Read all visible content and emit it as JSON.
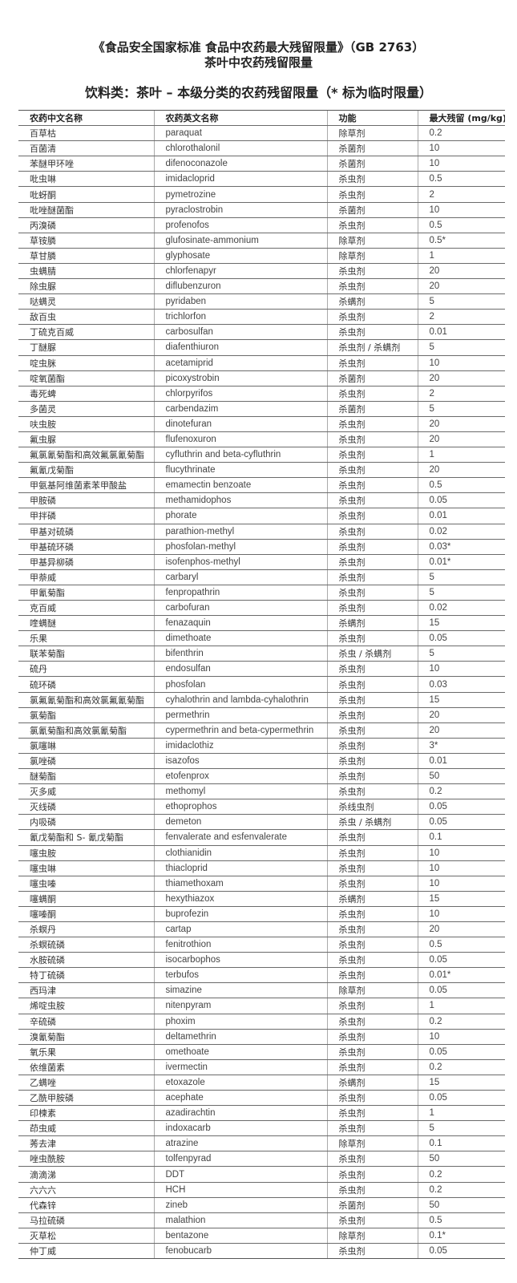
{
  "title_line1": "《食品安全国家标准 食品中农药最大残留限量》（GB 2763）",
  "title_line2": "茶叶中农药残留限量",
  "subtitle": "饮料类：茶叶 – 本级分类的农药残留限量（* 标为临时限量）",
  "table": {
    "headers": [
      "农药中文名称",
      "农药英文名称",
      "功能",
      "最大残留 (mg/kg)"
    ],
    "rows": [
      [
        "百草枯",
        "paraquat",
        "除草剂",
        "0.2"
      ],
      [
        "百菌清",
        "chlorothalonil",
        "杀菌剂",
        "10"
      ],
      [
        "苯醚甲环唑",
        "difenoconazole",
        "杀菌剂",
        "10"
      ],
      [
        "吡虫啉",
        "imidacloprid",
        "杀虫剂",
        "0.5"
      ],
      [
        "吡蚜酮",
        "pymetrozine",
        "杀虫剂",
        "2"
      ],
      [
        "吡唑醚菌酯",
        "pyraclostrobin",
        "杀菌剂",
        "10"
      ],
      [
        "丙溴磷",
        "profenofos",
        "杀虫剂",
        "0.5"
      ],
      [
        "草铵膦",
        "glufosinate-ammonium",
        "除草剂",
        "0.5*"
      ],
      [
        "草甘膦",
        "glyphosate",
        "除草剂",
        "1"
      ],
      [
        "虫螨腈",
        "chlorfenapyr",
        "杀虫剂",
        "20"
      ],
      [
        "除虫脲",
        "diflubenzuron",
        "杀虫剂",
        "20"
      ],
      [
        "哒螨灵",
        "pyridaben",
        "杀螨剂",
        "5"
      ],
      [
        "敌百虫",
        "trichlorfon",
        "杀虫剂",
        "2"
      ],
      [
        "丁硫克百威",
        "carbosulfan",
        "杀虫剂",
        "0.01"
      ],
      [
        "丁醚脲",
        "diafenthiuron",
        "杀虫剂 / 杀螨剂",
        "5"
      ],
      [
        "啶虫脒",
        "acetamiprid",
        "杀虫剂",
        "10"
      ],
      [
        "啶氧菌酯",
        "picoxystrobin",
        "杀菌剂",
        "20"
      ],
      [
        "毒死蜱",
        "chlorpyrifos",
        "杀虫剂",
        "2"
      ],
      [
        "多菌灵",
        "carbendazim",
        "杀菌剂",
        "5"
      ],
      [
        "呋虫胺",
        "dinotefuran",
        "杀虫剂",
        "20"
      ],
      [
        "氟虫脲",
        "flufenoxuron",
        "杀虫剂",
        "20"
      ],
      [
        "氟氯氰菊酯和高效氟氯氰菊酯",
        "cyfluthrin and beta-cyfluthrin",
        "杀虫剂",
        "1"
      ],
      [
        "氟氰戊菊酯",
        "flucythrinate",
        "杀虫剂",
        "20"
      ],
      [
        "甲氨基阿维菌素苯甲酸盐",
        "emamectin benzoate",
        "杀虫剂",
        "0.5"
      ],
      [
        "甲胺磷",
        "methamidophos",
        "杀虫剂",
        "0.05"
      ],
      [
        "甲拌磷",
        "phorate",
        "杀虫剂",
        "0.01"
      ],
      [
        "甲基对硫磷",
        "parathion-methyl",
        "杀虫剂",
        "0.02"
      ],
      [
        "甲基硫环磷",
        "phosfolan-methyl",
        "杀虫剂",
        "0.03*"
      ],
      [
        "甲基异柳磷",
        "isofenphos-methyl",
        "杀虫剂",
        "0.01*"
      ],
      [
        "甲萘威",
        "carbaryl",
        "杀虫剂",
        "5"
      ],
      [
        "甲氰菊酯",
        "fenpropathrin",
        "杀虫剂",
        "5"
      ],
      [
        "克百威",
        "carbofuran",
        "杀虫剂",
        "0.02"
      ],
      [
        "喹螨醚",
        "fenazaquin",
        "杀螨剂",
        "15"
      ],
      [
        "乐果",
        "dimethoate",
        "杀虫剂",
        "0.05"
      ],
      [
        "联苯菊酯",
        "bifenthrin",
        "杀虫 / 杀螨剂",
        "5"
      ],
      [
        "硫丹",
        "endosulfan",
        "杀虫剂",
        "10"
      ],
      [
        "硫环磷",
        "phosfolan",
        "杀虫剂",
        "0.03"
      ],
      [
        "氯氟氰菊酯和高效氯氟氰菊酯",
        "cyhalothrin and lambda-cyhalothrin",
        "杀虫剂",
        "15"
      ],
      [
        "氯菊酯",
        "permethrin",
        "杀虫剂",
        "20"
      ],
      [
        "氯氰菊酯和高效氯氰菊酯",
        "cypermethrin and beta-cypermethrin",
        "杀虫剂",
        "20"
      ],
      [
        "氯噻啉",
        "imidaclothiz",
        "杀虫剂",
        "3*"
      ],
      [
        "氯唑磷",
        "isazofos",
        "杀虫剂",
        "0.01"
      ],
      [
        "醚菊酯",
        "etofenprox",
        "杀虫剂",
        "50"
      ],
      [
        "灭多威",
        "methomyl",
        "杀虫剂",
        "0.2"
      ],
      [
        "灭线磷",
        "ethoprophos",
        "杀线虫剂",
        "0.05"
      ],
      [
        "内吸磷",
        "demeton",
        "杀虫 / 杀螨剂",
        "0.05"
      ],
      [
        "氰戊菊酯和 S- 氰戊菊酯",
        "fenvalerate and esfenvalerate",
        "杀虫剂",
        "0.1"
      ],
      [
        "噻虫胺",
        "clothianidin",
        "杀虫剂",
        "10"
      ],
      [
        "噻虫啉",
        "thiacloprid",
        "杀虫剂",
        "10"
      ],
      [
        "噻虫嗪",
        "thiamethoxam",
        "杀虫剂",
        "10"
      ],
      [
        "噻螨酮",
        "hexythiazox",
        "杀螨剂",
        "15"
      ],
      [
        "噻嗪酮",
        "buprofezin",
        "杀虫剂",
        "10"
      ],
      [
        "杀螟丹",
        "cartap",
        "杀虫剂",
        "20"
      ],
      [
        "杀螟硫磷",
        "fenitrothion",
        "杀虫剂",
        "0.5"
      ],
      [
        "水胺硫磷",
        "isocarbophos",
        "杀虫剂",
        "0.05"
      ],
      [
        "特丁硫磷",
        "terbufos",
        "杀虫剂",
        "0.01*"
      ],
      [
        "西玛津",
        "simazine",
        "除草剂",
        "0.05"
      ],
      [
        "烯啶虫胺",
        "nitenpyram",
        "杀虫剂",
        "1"
      ],
      [
        "辛硫磷",
        "phoxim",
        "杀虫剂",
        "0.2"
      ],
      [
        "溴氰菊酯",
        "deltamethrin",
        "杀虫剂",
        "10"
      ],
      [
        "氧乐果",
        "omethoate",
        "杀虫剂",
        "0.05"
      ],
      [
        "依维菌素",
        "ivermectin",
        "杀虫剂",
        "0.2"
      ],
      [
        "乙螨唑",
        "etoxazole",
        "杀螨剂",
        "15"
      ],
      [
        "乙酰甲胺磷",
        "acephate",
        "杀虫剂",
        "0.05"
      ],
      [
        "印楝素",
        "azadirachtin",
        "杀虫剂",
        "1"
      ],
      [
        "茚虫威",
        "indoxacarb",
        "杀虫剂",
        "5"
      ],
      [
        "莠去津",
        "atrazine",
        "除草剂",
        "0.1"
      ],
      [
        "唑虫酰胺",
        "tolfenpyrad",
        "杀虫剂",
        "50"
      ],
      [
        "滴滴涕",
        "DDT",
        "杀虫剂",
        "0.2"
      ],
      [
        "六六六",
        "HCH",
        "杀虫剂",
        "0.2"
      ],
      [
        "代森锌",
        "zineb",
        "杀菌剂",
        "50"
      ],
      [
        "马拉硫磷",
        "malathion",
        "杀虫剂",
        "0.5"
      ],
      [
        "灭草松",
        "bentazone",
        "除草剂",
        "0.1*"
      ],
      [
        "仲丁威",
        "fenobucarb",
        "杀虫剂",
        "0.05"
      ]
    ]
  }
}
